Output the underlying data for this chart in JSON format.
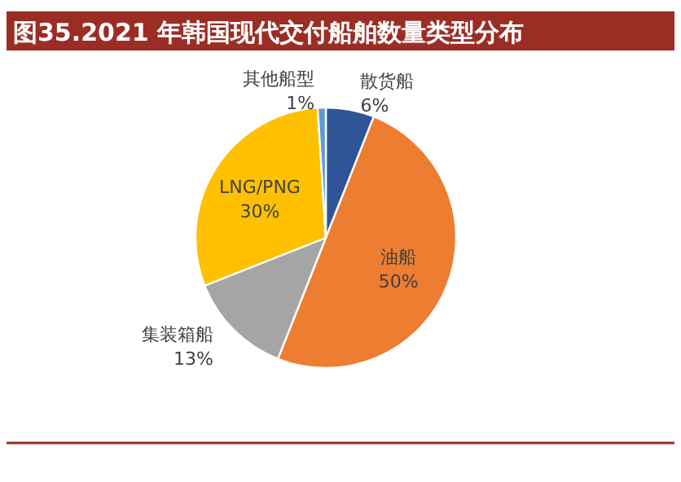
{
  "chart_data": {
    "type": "pie",
    "title": "图35.2021 年韩国现代交付船舶数量类型分布",
    "categories": [
      "散货船",
      "油船",
      "集装箱船",
      "LNG/PNG",
      "其他船型"
    ],
    "values": [
      6,
      50,
      13,
      30,
      1
    ],
    "colors": [
      "#2f5597",
      "#ed7d31",
      "#a5a5a5",
      "#ffc000",
      "#5b9bd5"
    ],
    "value_labels": [
      "6%",
      "50%",
      "13%",
      "30%",
      "1%"
    ]
  }
}
